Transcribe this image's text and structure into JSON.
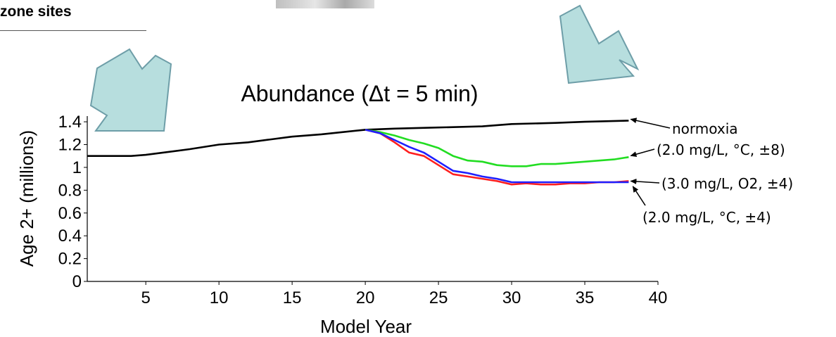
{
  "header": {
    "zone_label": "zone sites"
  },
  "colors": {
    "arrow_fill": "#b7dede",
    "arrow_stroke": "#6e9ea8",
    "normoxia": "#000000",
    "series_8": "#22dd22",
    "series_o2": "#ff1f1f",
    "series_4": "#1f1fff"
  },
  "chart_data": {
    "type": "line",
    "title": "Abundance (Δt = 5 min)",
    "xlabel": "Model Year",
    "ylabel": "Age 2+ (millions)",
    "xlim": [
      1,
      40
    ],
    "ylim": [
      0,
      1.45
    ],
    "xticks": [
      "5",
      "10",
      "15",
      "20",
      "25",
      "30",
      "35",
      "40"
    ],
    "yticks": [
      "0",
      "0.2",
      "0.4",
      "0.6",
      "0.8",
      "1",
      "1.2",
      "1.4"
    ],
    "grid": false,
    "series": [
      {
        "name": "normoxia",
        "x": [
          1,
          4,
          5,
          8,
          10,
          12,
          15,
          17,
          20,
          22,
          25,
          28,
          30,
          33,
          35,
          38
        ],
        "y": [
          1.1,
          1.1,
          1.11,
          1.16,
          1.2,
          1.22,
          1.27,
          1.29,
          1.33,
          1.34,
          1.35,
          1.36,
          1.38,
          1.39,
          1.4,
          1.41
        ]
      },
      {
        "name": "(2.0 mg/L, °C, ±8)",
        "x": [
          20,
          21,
          22,
          23,
          24,
          25,
          26,
          27,
          28,
          29,
          30,
          31,
          32,
          33,
          34,
          35,
          36,
          37,
          38
        ],
        "y": [
          1.33,
          1.31,
          1.28,
          1.24,
          1.21,
          1.17,
          1.1,
          1.06,
          1.05,
          1.02,
          1.01,
          1.01,
          1.03,
          1.03,
          1.04,
          1.05,
          1.06,
          1.07,
          1.09
        ]
      },
      {
        "name": "(3.0 mg/L, O2, ±4)",
        "x": [
          20,
          21,
          22,
          23,
          24,
          25,
          26,
          27,
          28,
          29,
          30,
          31,
          32,
          33,
          34,
          35,
          36,
          37,
          38
        ],
        "y": [
          1.33,
          1.3,
          1.22,
          1.13,
          1.1,
          1.02,
          0.94,
          0.92,
          0.9,
          0.88,
          0.85,
          0.86,
          0.85,
          0.85,
          0.86,
          0.86,
          0.87,
          0.87,
          0.88
        ]
      },
      {
        "name": "(2.0 mg/L, °C, ±4)",
        "x": [
          20,
          21,
          22,
          23,
          24,
          25,
          26,
          27,
          28,
          29,
          30,
          31,
          32,
          33,
          34,
          35,
          36,
          37,
          38
        ],
        "y": [
          1.33,
          1.3,
          1.24,
          1.18,
          1.13,
          1.05,
          0.97,
          0.95,
          0.92,
          0.9,
          0.87,
          0.87,
          0.87,
          0.87,
          0.87,
          0.87,
          0.87,
          0.87,
          0.87
        ]
      }
    ],
    "annotations": [
      {
        "text": "normoxia",
        "series": "normoxia"
      },
      {
        "text": "(2.0 mg/L, °C, ±8)",
        "series": "(2.0 mg/L, °C, ±8)"
      },
      {
        "text": "(3.0 mg/L, O2, ±4)",
        "series": "(3.0 mg/L, O2, ±4)"
      },
      {
        "text": "(2.0 mg/L, °C, ±4)",
        "series": "(2.0 mg/L, °C, ±4)"
      }
    ]
  }
}
